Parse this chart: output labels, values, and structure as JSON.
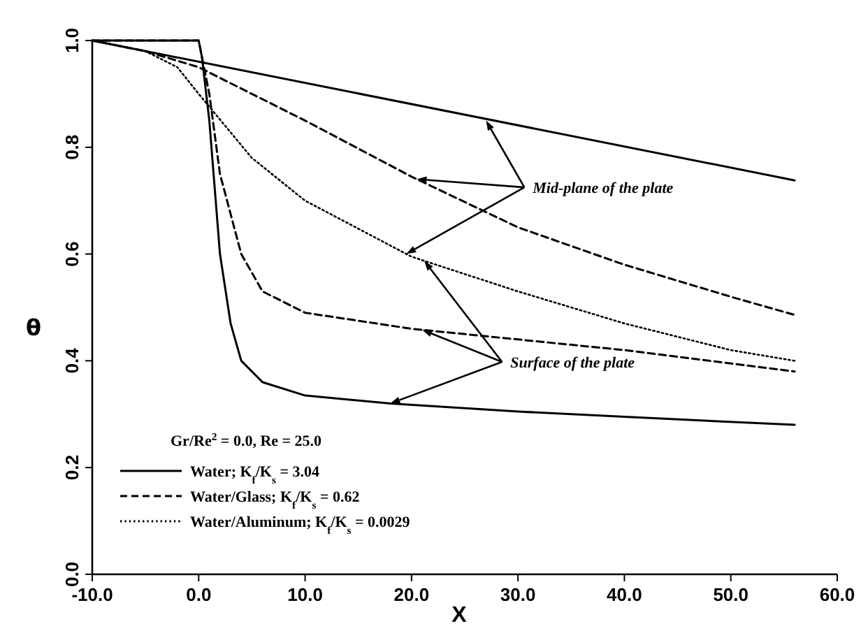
{
  "chart_data": {
    "type": "line",
    "xlabel": "X",
    "ylabel": "θ",
    "legend_title": "Gr/Re$^{2}$ = 0.0, Re = 25.0",
    "legend": "bottom left",
    "xlim": [
      -10,
      60
    ],
    "ylim": [
      0,
      1
    ],
    "xticks": [
      {
        "value": -10,
        "label": "-10.0"
      },
      {
        "value": 0,
        "label": "0.0"
      },
      {
        "value": 10,
        "label": "10.0"
      },
      {
        "value": 20,
        "label": "20.0"
      },
      {
        "value": 30,
        "label": "30.0"
      },
      {
        "value": 40,
        "label": "40.0"
      },
      {
        "value": 50,
        "label": "50.0"
      },
      {
        "value": 60,
        "label": "60.0"
      }
    ],
    "yticks": [
      {
        "value": 0,
        "label": "0.0"
      },
      {
        "value": 0.2,
        "label": "0.2"
      },
      {
        "value": 0.4,
        "label": "0.4"
      },
      {
        "value": 0.6,
        "label": "0.6"
      },
      {
        "value": 0.8,
        "label": "0.8"
      },
      {
        "value": 1,
        "label": "1.0"
      }
    ],
    "grid": false,
    "marker": "none",
    "annotations": [
      {
        "text": "Mid-plane of the plate",
        "x": 27,
        "y": 0.85
      },
      {
        "text": "Surface of the plate",
        "x": 18,
        "y": 0.32
      }
    ],
    "series": [
      {
        "name": "Water; K$_{f}$/K$_{s}$ = 3.04",
        "color": "#000000",
        "line_style": "solid",
        "x": [
          -10,
          0,
          0.3,
          1,
          2,
          3,
          4,
          6,
          10,
          18,
          30,
          40,
          56
        ],
        "values": [
          1,
          1,
          0.97,
          0.85,
          0.6,
          0.47,
          0.4,
          0.36,
          0.335,
          0.32,
          0.305,
          0.295,
          0.28
        ]
      },
      {
        "name": "Water/Glass; K$_{f}$/K$_{s}$ = 0.62",
        "color": "#000000",
        "line_style": "dashed",
        "x": [
          -10,
          0,
          0.3,
          1,
          2,
          4,
          6,
          10,
          20,
          30,
          40,
          56
        ],
        "values": [
          1,
          1,
          0.97,
          0.9,
          0.75,
          0.6,
          0.53,
          0.49,
          0.46,
          0.44,
          0.42,
          0.38
        ]
      },
      {
        "name": "Water/Aluminum; K$_{f}$/K$_{s}$ = 0.0029",
        "color": "#000000",
        "line_style": "dotted",
        "x": [
          -10,
          -5,
          -2,
          0,
          5,
          10,
          20,
          30,
          40,
          50,
          56
        ],
        "values": [
          1,
          0.98,
          0.95,
          0.9,
          0.78,
          0.7,
          0.595,
          0.53,
          0.47,
          0.42,
          0.4
        ]
      },
      {
        "color": "#000000",
        "line_style": "solid",
        "x": [
          -10,
          56
        ],
        "values": [
          1,
          0.738
        ]
      },
      {
        "color": "#000000",
        "line_style": "dashed",
        "x": [
          -10,
          -5,
          0,
          10,
          20,
          30,
          40,
          50,
          56
        ],
        "values": [
          1,
          0.98,
          0.95,
          0.85,
          0.745,
          0.65,
          0.58,
          0.52,
          0.486
        ]
      }
    ]
  }
}
